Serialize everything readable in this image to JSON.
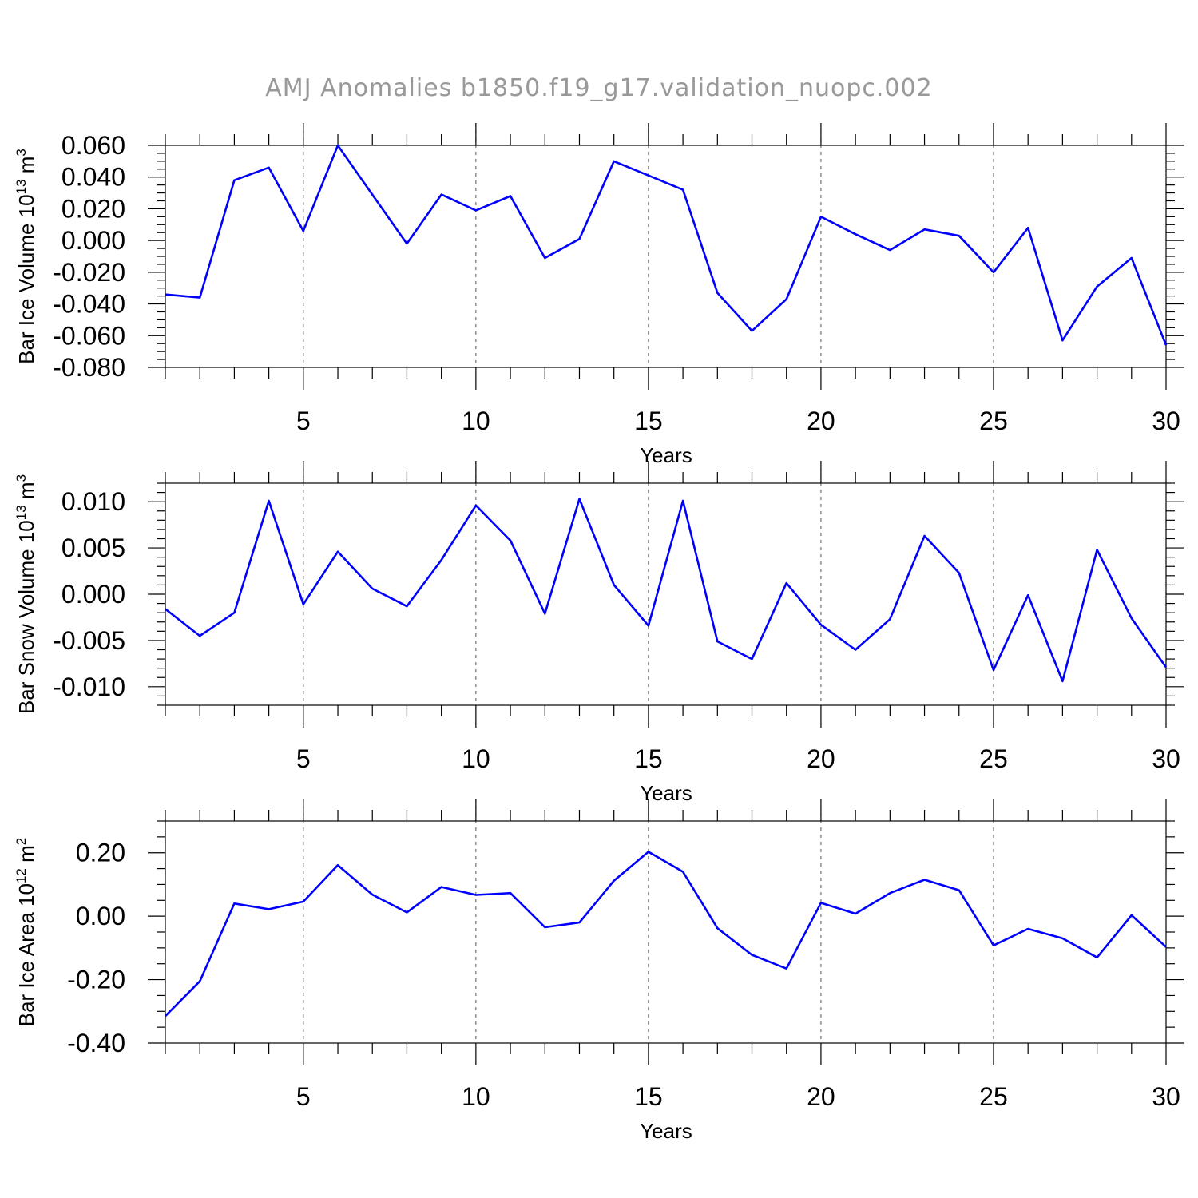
{
  "title": "AMJ Anomalies b1850.f19_g17.validation_nuopc.002",
  "colors": {
    "line": "#0000ff",
    "grid": "#555555",
    "title": "#999999"
  },
  "chart_data": [
    {
      "type": "line",
      "ylabel": "Bar Ice Volume 10",
      "ylabel_exp": "13",
      "ylabel_unit": " m",
      "ylabel_unit_exp": "3",
      "xlabel": "Years",
      "xlim": [
        1,
        30
      ],
      "ylim": [
        -0.08,
        0.06
      ],
      "x_ticks": [
        5,
        10,
        15,
        20,
        25,
        30
      ],
      "x_tick_labels": [
        "5",
        "10",
        "15",
        "20",
        "25",
        "30"
      ],
      "y_ticks": [
        -0.08,
        -0.06,
        -0.04,
        -0.02,
        0.0,
        0.02,
        0.04,
        0.06
      ],
      "y_tick_labels": [
        "-0.080",
        "-0.060",
        "-0.040",
        "-0.020",
        "0.000",
        "0.020",
        "0.040",
        "0.060"
      ],
      "y_minor": 0.005,
      "grid_x": [
        5,
        10,
        15,
        20,
        25
      ],
      "x": [
        1,
        2,
        3,
        4,
        5,
        6,
        7,
        8,
        9,
        10,
        11,
        12,
        13,
        14,
        15,
        16,
        17,
        18,
        19,
        20,
        21,
        22,
        23,
        24,
        25,
        26,
        27,
        28,
        29,
        30
      ],
      "values": [
        -0.034,
        -0.036,
        0.038,
        0.046,
        0.006,
        0.06,
        0.029,
        -0.002,
        0.029,
        0.019,
        0.028,
        -0.011,
        0.001,
        0.05,
        0.041,
        0.032,
        -0.033,
        -0.057,
        -0.037,
        0.015,
        0.004,
        -0.006,
        0.007,
        0.003,
        -0.02,
        0.008,
        -0.063,
        -0.029,
        -0.011,
        -0.066
      ]
    },
    {
      "type": "line",
      "ylabel": "Bar Snow Volume 10",
      "ylabel_exp": "13",
      "ylabel_unit": " m",
      "ylabel_unit_exp": "3",
      "xlabel": "Years",
      "xlim": [
        1,
        30
      ],
      "ylim": [
        -0.012,
        0.012
      ],
      "x_ticks": [
        5,
        10,
        15,
        20,
        25,
        30
      ],
      "x_tick_labels": [
        "5",
        "10",
        "15",
        "20",
        "25",
        "30"
      ],
      "y_ticks": [
        -0.01,
        -0.005,
        0.0,
        0.005,
        0.01
      ],
      "y_tick_labels": [
        "-0.010",
        "-0.005",
        "0.000",
        "0.005",
        "0.010"
      ],
      "y_minor": 0.001,
      "grid_x": [
        5,
        10,
        15,
        20,
        25
      ],
      "x": [
        1,
        2,
        3,
        4,
        5,
        6,
        7,
        8,
        9,
        10,
        11,
        12,
        13,
        14,
        15,
        16,
        17,
        18,
        19,
        20,
        21,
        22,
        23,
        24,
        25,
        26,
        27,
        28,
        29,
        30
      ],
      "values": [
        -0.0016,
        -0.0045,
        -0.002,
        0.0101,
        -0.0011,
        0.0046,
        0.0006,
        -0.0013,
        0.0037,
        0.0096,
        0.0058,
        -0.0021,
        0.0103,
        0.001,
        -0.0034,
        0.0101,
        -0.0051,
        -0.007,
        0.0012,
        -0.0033,
        -0.006,
        -0.0027,
        0.0063,
        0.0023,
        -0.0082,
        -0.0001,
        -0.0094,
        0.0048,
        -0.0026,
        -0.0079
      ]
    },
    {
      "type": "line",
      "ylabel": "Bar Ice Area 10",
      "ylabel_exp": "12",
      "ylabel_unit": " m",
      "ylabel_unit_exp": "2",
      "xlabel": "Years",
      "xlim": [
        1,
        30
      ],
      "ylim": [
        -0.4,
        0.3
      ],
      "x_ticks": [
        5,
        10,
        15,
        20,
        25,
        30
      ],
      "x_tick_labels": [
        "5",
        "10",
        "15",
        "20",
        "25",
        "30"
      ],
      "y_ticks": [
        -0.4,
        -0.2,
        0.0,
        0.2
      ],
      "y_tick_labels": [
        "-0.40",
        "-0.20",
        "0.00",
        "0.20"
      ],
      "y_minor": 0.05,
      "grid_x": [
        5,
        10,
        15,
        20,
        25
      ],
      "x": [
        1,
        2,
        3,
        4,
        5,
        6,
        7,
        8,
        9,
        10,
        11,
        12,
        13,
        14,
        15,
        16,
        17,
        18,
        19,
        20,
        21,
        22,
        23,
        24,
        25,
        26,
        27,
        28,
        29,
        30
      ],
      "values": [
        -0.315,
        -0.205,
        0.04,
        0.022,
        0.046,
        0.161,
        0.068,
        0.012,
        0.092,
        0.067,
        0.073,
        -0.035,
        -0.02,
        0.112,
        0.203,
        0.14,
        -0.038,
        -0.122,
        -0.165,
        0.042,
        0.008,
        0.073,
        0.115,
        0.082,
        -0.092,
        -0.04,
        -0.07,
        -0.13,
        0.003,
        -0.097
      ]
    }
  ]
}
